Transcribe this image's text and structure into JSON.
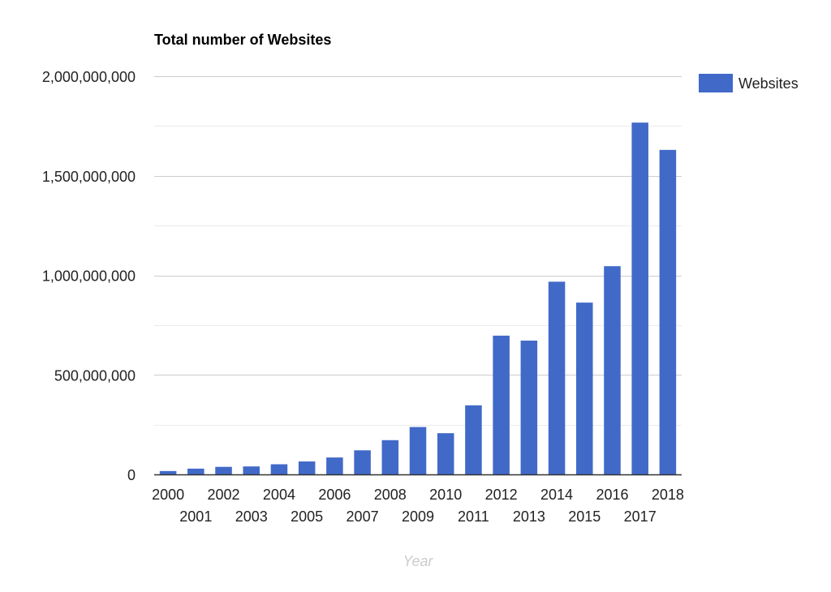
{
  "chart_data": {
    "type": "bar",
    "title": "Total number of Websites",
    "xlabel": "Year",
    "ylabel": "",
    "ylim": [
      0,
      2000000000
    ],
    "y_ticks": [
      0,
      500000000,
      1000000000,
      1500000000,
      2000000000
    ],
    "y_tick_labels": [
      "0",
      "500,000,000",
      "1,000,000,000",
      "1,500,000,000",
      "2,000,000,000"
    ],
    "minor_gridlines": true,
    "legend_position": "right",
    "color": "#4169c8",
    "categories": [
      "2000",
      "2001",
      "2002",
      "2003",
      "2004",
      "2005",
      "2006",
      "2007",
      "2008",
      "2009",
      "2010",
      "2011",
      "2012",
      "2013",
      "2014",
      "2015",
      "2016",
      "2017",
      "2018"
    ],
    "series": [
      {
        "name": "Websites",
        "values": [
          17000000,
          29000000,
          38000000,
          40000000,
          51000000,
          65000000,
          85000000,
          121000000,
          172000000,
          238000000,
          207000000,
          347000000,
          697000000,
          672000000,
          968000000,
          863000000,
          1046000000,
          1767000000,
          1630000000
        ]
      }
    ]
  }
}
